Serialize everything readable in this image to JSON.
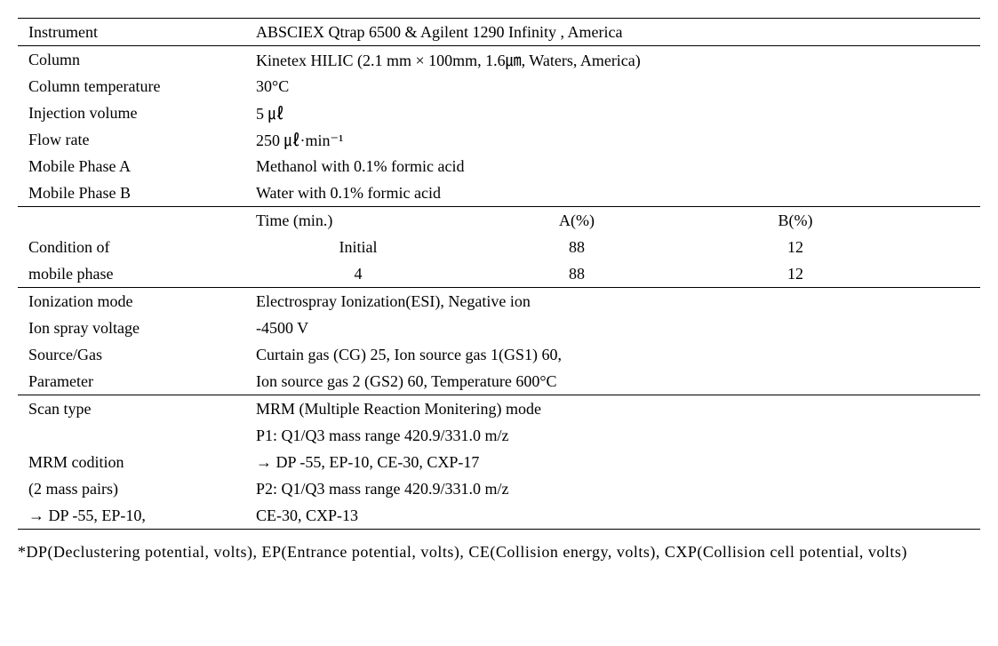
{
  "section1": {
    "instrument_label": "Instrument",
    "instrument_value": "ABSCIEX   Qtrap 6500 & Agilent 1290 Infinity ,  America",
    "column_label": "Column",
    "column_value": "Kinetex HILIC   (2.1 mm × 100mm, 1.6㎛, Waters, America)",
    "coltemp_label": "Column temperature",
    "coltemp_value": "  30°C",
    "injvol_label": "Injection volume",
    "injvol_value": "  5 ㎕",
    "flow_label": "Flow rate",
    "flow_value": "250 ㎕·min⁻¹",
    "mpa_label": "Mobile Phase A",
    "mpa_value": " Methanol   with 0.1% formic acid",
    "mpb_label": "Mobile Phase B",
    "mpb_value": " Water with 0.1%   formic acid"
  },
  "gradient": {
    "h_time": "Time (min.)",
    "h_a": "A(%)",
    "h_b": "B(%)",
    "cond_label1": "Condition   of",
    "cond_label2": "mobile   phase",
    "r1_time": "Initial",
    "r1_a": "88",
    "r1_b": "12",
    "r2_time": "4",
    "r2_a": "88",
    "r2_b": "12"
  },
  "section3": {
    "ionmode_label": "Ionization mode",
    "ionmode_value": " Electrospray   Ionization(ESI), Negative ion",
    "ionspray_label": "Ion spray voltage",
    "ionspray_value": " -4500 V",
    "src_label1": "Source/Gas",
    "src_value1": " Curtain gas   (CG) 25, Ion source gas 1(GS1) 60,",
    "src_label2": "Parameter",
    "src_value2": " Ion source gas   2 (GS2) 60, Temperature 600°C"
  },
  "section4": {
    "scan_label": "Scan type",
    "scan_value": "MRM   (Multiple Reaction Monitering) mode",
    "mrm_blank": "",
    "mrm_p1": "P1: Q1/Q3   mass range 420.9/331.0 m/z",
    "mrm_label1": "MRM codition",
    "mrm_dp1": " → DP -55,   EP-10, CE-30, CXP-17",
    "mrm_label2": "(2 mass pairs)",
    "mrm_p2": "  P2: Q1/Q3   mass range 420.9/331.0 m/z",
    "mrm_last_left": " → DP -55, EP-10,",
    "mrm_last_right": "CE-30, CXP-13"
  },
  "footnote": "*DP(Declustering  potential,  volts),  EP(Entrance  potential,  volts),  CE(Collision  energy, volts), CXP(Collision cell potential, volts)"
}
